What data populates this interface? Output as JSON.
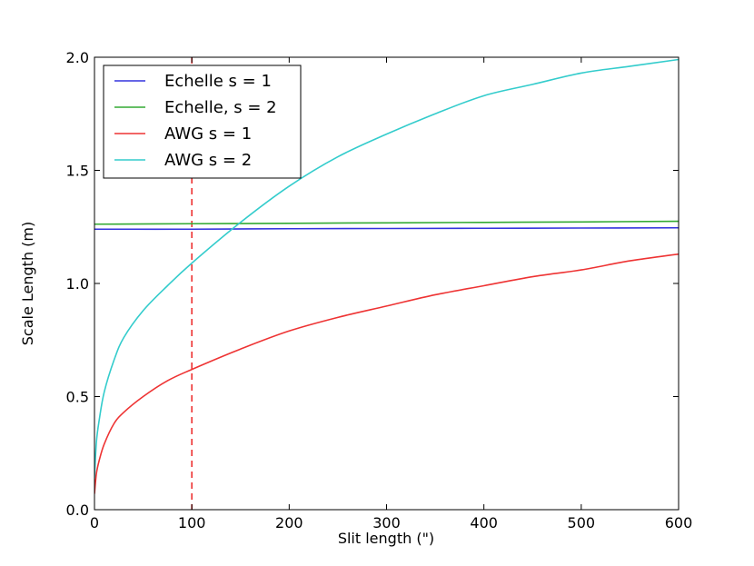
{
  "chart_data": {
    "type": "line",
    "xlabel": "Slit length (\")",
    "ylabel": "Scale Length (m)",
    "xlim": [
      0,
      600
    ],
    "ylim": [
      0.0,
      2.0
    ],
    "xticks": [
      0,
      100,
      200,
      300,
      400,
      500,
      600
    ],
    "xtick_labels": [
      "0",
      "100",
      "200",
      "300",
      "400",
      "500",
      "600"
    ],
    "yticks": [
      0.0,
      0.5,
      1.0,
      1.5,
      2.0
    ],
    "ytick_labels": [
      "0.0",
      "0.5",
      "1.0",
      "1.5",
      "2.0"
    ],
    "grid": false,
    "legend_position": "top-left",
    "series": [
      {
        "name": "Echelle s = 1",
        "color": "#3333dd",
        "x": [
          0,
          100,
          200,
          300,
          400,
          500,
          600
        ],
        "y": [
          1.24,
          1.24,
          1.242,
          1.243,
          1.244,
          1.245,
          1.246
        ]
      },
      {
        "name": "Echelle, s = 2",
        "color": "#33aa33",
        "x": [
          0,
          100,
          200,
          300,
          400,
          500,
          600
        ],
        "y": [
          1.262,
          1.264,
          1.266,
          1.268,
          1.27,
          1.272,
          1.275
        ]
      },
      {
        "name": "AWG s = 1",
        "color": "#ee3333",
        "x": [
          0,
          2,
          5,
          10,
          20,
          30,
          50,
          75,
          100,
          150,
          200,
          250,
          300,
          350,
          400,
          450,
          500,
          550,
          600
        ],
        "y": [
          0.07,
          0.16,
          0.22,
          0.29,
          0.38,
          0.43,
          0.5,
          0.57,
          0.62,
          0.71,
          0.79,
          0.85,
          0.9,
          0.95,
          0.99,
          1.03,
          1.06,
          1.1,
          1.13
        ]
      },
      {
        "name": "AWG s = 2",
        "color": "#33cccc",
        "x": [
          0,
          2,
          5,
          10,
          20,
          30,
          50,
          75,
          100,
          150,
          200,
          250,
          300,
          350,
          400,
          450,
          500,
          550,
          600
        ],
        "y": [
          0.14,
          0.3,
          0.4,
          0.52,
          0.66,
          0.76,
          0.88,
          0.99,
          1.09,
          1.27,
          1.43,
          1.56,
          1.66,
          1.75,
          1.83,
          1.88,
          1.93,
          1.96,
          1.99
        ]
      }
    ],
    "vlines": [
      {
        "x": 100,
        "color": "#ee3333",
        "style": "dashed"
      }
    ]
  }
}
